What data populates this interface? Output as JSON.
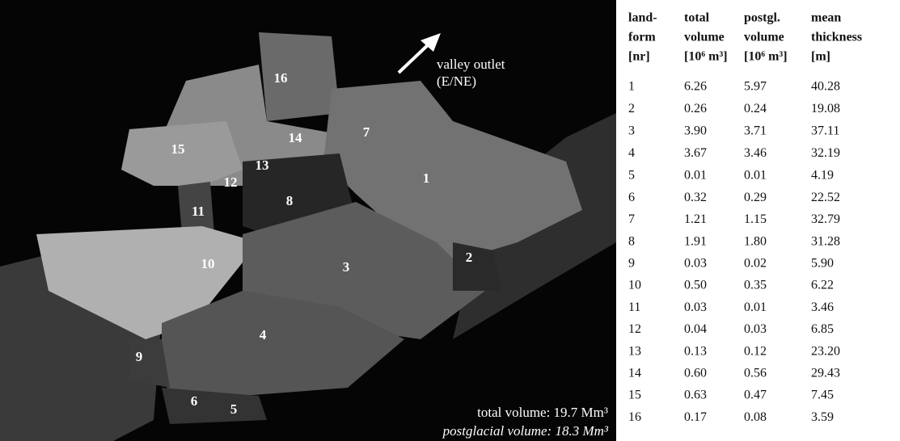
{
  "figure": {
    "annotation": {
      "arrow_label": [
        "valley outlet",
        "(E/NE)"
      ],
      "total_volume": "total volume: 19.7 Mm³",
      "postglacial_volume": "postglacial volume: 18.3 Mm³"
    },
    "labels": [
      "1",
      "2",
      "3",
      "4",
      "5",
      "6",
      "7",
      "8",
      "9",
      "10",
      "11",
      "12",
      "13",
      "14",
      "15",
      "16"
    ]
  },
  "table": {
    "header": [
      [
        "land-",
        "form",
        "[nr]"
      ],
      [
        "total",
        "volume",
        "[10⁶ m³]"
      ],
      [
        "postgl.",
        "volume",
        "[10⁶ m³]"
      ],
      [
        "mean",
        "thickness",
        "[m]"
      ]
    ],
    "rows": [
      [
        "1",
        "6.26",
        "5.97",
        "40.28"
      ],
      [
        "2",
        "0.26",
        "0.24",
        "19.08"
      ],
      [
        "3",
        "3.90",
        "3.71",
        "37.11"
      ],
      [
        "4",
        "3.67",
        "3.46",
        "32.19"
      ],
      [
        "5",
        "0.01",
        "0.01",
        "4.19"
      ],
      [
        "6",
        "0.32",
        "0.29",
        "22.52"
      ],
      [
        "7",
        "1.21",
        "1.15",
        "32.79"
      ],
      [
        "8",
        "1.91",
        "1.80",
        "31.28"
      ],
      [
        "9",
        "0.03",
        "0.02",
        "5.90"
      ],
      [
        "10",
        "0.50",
        "0.35",
        "6.22"
      ],
      [
        "11",
        "0.03",
        "0.01",
        "3.46"
      ],
      [
        "12",
        "0.04",
        "0.03",
        "6.85"
      ],
      [
        "13",
        "0.13",
        "0.12",
        "23.20"
      ],
      [
        "14",
        "0.60",
        "0.56",
        "29.43"
      ],
      [
        "15",
        "0.63",
        "0.47",
        "7.45"
      ],
      [
        "16",
        "0.17",
        "0.08",
        "3.59"
      ]
    ]
  }
}
